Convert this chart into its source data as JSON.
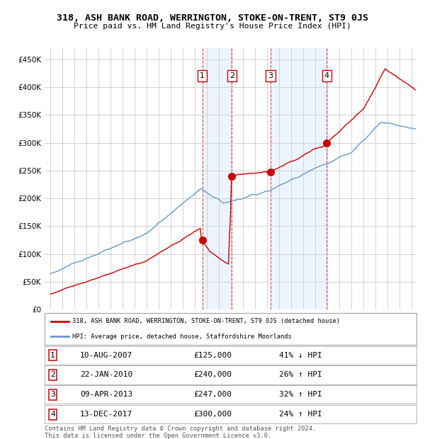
{
  "title": "318, ASH BANK ROAD, WERRINGTON, STOKE-ON-TRENT, ST9 0JS",
  "subtitle": "Price paid vs. HM Land Registry's House Price Index (HPI)",
  "ylim": [
    0,
    470000
  ],
  "yticks": [
    0,
    50000,
    100000,
    150000,
    200000,
    250000,
    300000,
    350000,
    400000,
    450000
  ],
  "xlim_start": 1994.5,
  "xlim_end": 2025.4,
  "transactions": [
    {
      "num": 1,
      "date_num": 2007.61,
      "price": 125000,
      "date_str": "10-AUG-2007",
      "pct": "41%",
      "dir": "↓"
    },
    {
      "num": 2,
      "date_num": 2010.06,
      "price": 240000,
      "date_str": "22-JAN-2010",
      "pct": "26%",
      "dir": "↑"
    },
    {
      "num": 3,
      "date_num": 2013.27,
      "price": 247000,
      "date_str": "09-APR-2013",
      "pct": "32%",
      "dir": "↑"
    },
    {
      "num": 4,
      "date_num": 2017.95,
      "price": 300000,
      "date_str": "13-DEC-2017",
      "pct": "24%",
      "dir": "↑"
    }
  ],
  "prop_color": "#cc0000",
  "hpi_color": "#6699cc",
  "legend_prop": "318, ASH BANK ROAD, WERRINGTON, STOKE-ON-TRENT, ST9 0JS (detached house)",
  "legend_hpi": "HPI: Average price, detached house, Staffordshire Moorlands",
  "footer": "Contains HM Land Registry data © Crown copyright and database right 2024.\nThis data is licensed under the Open Government Licence v3.0.",
  "plot_bg": "#ffffff",
  "shaded_color": "#ddeeff"
}
